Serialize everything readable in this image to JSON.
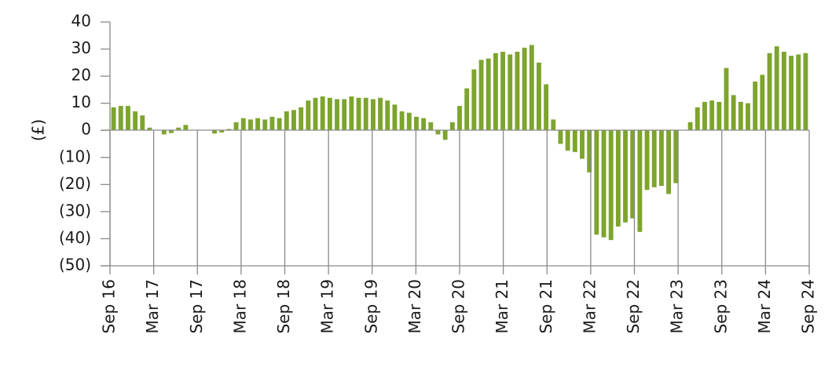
{
  "chart_data": {
    "type": "bar",
    "ylabel": "(£)",
    "ylim": [
      -50,
      40
    ],
    "yticks": [
      {
        "value": 40,
        "label": "40"
      },
      {
        "value": 30,
        "label": "30"
      },
      {
        "value": 20,
        "label": "20"
      },
      {
        "value": 10,
        "label": "10"
      },
      {
        "value": 0,
        "label": "0"
      },
      {
        "value": -10,
        "label": "(10)"
      },
      {
        "value": -20,
        "label": "(20)"
      },
      {
        "value": -30,
        "label": "(30)"
      },
      {
        "value": -40,
        "label": "(40)"
      },
      {
        "value": -50,
        "label": "(50)"
      }
    ],
    "xticks": [
      "Sep 16",
      "Mar 17",
      "Sep 17",
      "Mar 18",
      "Sep 18",
      "Mar 19",
      "Sep 19",
      "Mar 20",
      "Sep 20",
      "Mar 21",
      "Sep 21",
      "Mar 22",
      "Sep 22",
      "Mar 23",
      "Sep 23",
      "Mar 24",
      "Sep 24"
    ],
    "color": "#7da42d",
    "values": [
      8.5,
      9,
      9,
      7,
      5.5,
      1,
      0,
      -1.5,
      -1,
      1,
      2,
      0,
      0,
      0,
      -1.2,
      -0.8,
      0.5,
      3,
      4.5,
      4,
      4.5,
      4,
      5,
      4.5,
      7,
      7.5,
      8.5,
      11,
      12,
      12.5,
      12,
      11.5,
      11.5,
      12.5,
      12,
      12,
      11.5,
      12,
      11,
      9.5,
      7,
      6.5,
      5,
      4.5,
      3,
      -1.5,
      -3.5,
      3,
      9,
      15.5,
      22.5,
      26,
      26.5,
      28.5,
      29,
      28,
      29,
      30.5,
      31.5,
      25,
      17,
      4,
      -5,
      -7.5,
      -8,
      -10.5,
      -15.5,
      -38.5,
      -39.5,
      -40.5,
      -35.5,
      -34,
      -32.5,
      -37.5,
      -22,
      -21,
      -20.5,
      -23.5,
      -19.5,
      0,
      3,
      8.5,
      10.5,
      11,
      10.5,
      23,
      13,
      10.5,
      10,
      18,
      20.5,
      28.5,
      31,
      29,
      27.5,
      28,
      28.5
    ]
  }
}
